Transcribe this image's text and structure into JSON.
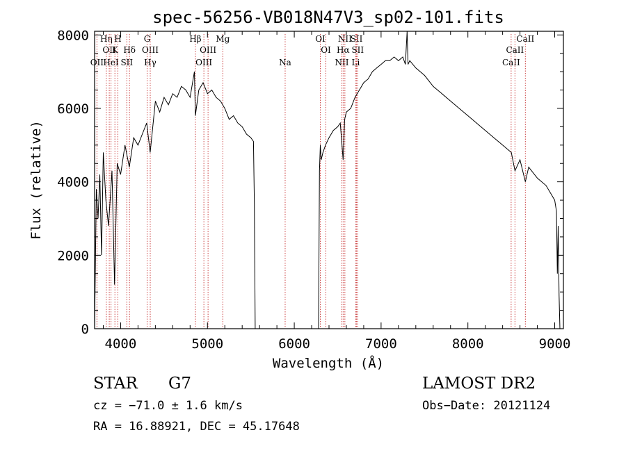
{
  "chart_data": {
    "type": "line",
    "title": "spec-56256-VB018N47V3_sp02-101.fits",
    "xlabel": "Wavelength (Å)",
    "ylabel": "Flux (relative)",
    "xlim": [
      3700,
      9100
    ],
    "ylim": [
      0,
      8100
    ],
    "x_ticks": [
      4000,
      5000,
      6000,
      7000,
      8000,
      9000
    ],
    "y_ticks": [
      0,
      2000,
      4000,
      6000,
      8000
    ],
    "grid": false,
    "series": [
      {
        "x": [
          3700,
          3720,
          3740,
          3760,
          3780,
          3800,
          3830,
          3860,
          3900,
          3930,
          3960,
          4000,
          4050,
          4100,
          4150,
          4200,
          4250,
          4300,
          4340,
          4400,
          4450,
          4500,
          4550,
          4600,
          4650,
          4700,
          4750,
          4800,
          4850,
          4861,
          4900,
          4950,
          5000,
          5050,
          5100,
          5150,
          5200,
          5250,
          5300,
          5350,
          5400,
          5450,
          5500,
          5530,
          5540,
          5550,
          5560
        ],
        "y": [
          0,
          3800,
          3000,
          4200,
          2000,
          4800,
          3500,
          2800,
          4300,
          1200,
          4500,
          4200,
          5000,
          4400,
          5200,
          5000,
          5300,
          5600,
          4800,
          6200,
          5900,
          6300,
          6100,
          6400,
          6300,
          6600,
          6500,
          6300,
          7000,
          5800,
          6500,
          6700,
          6400,
          6500,
          6300,
          6200,
          6000,
          5700,
          5800,
          5600,
          5500,
          5300,
          5200,
          5100,
          3400,
          0,
          0
        ]
      },
      {
        "x": [
          6280,
          6290,
          6300,
          6310,
          6330,
          6360,
          6400,
          6450,
          6500,
          6530,
          6563,
          6580,
          6600,
          6650,
          6700,
          6750,
          6800,
          6850,
          6900,
          6950,
          7000,
          7050,
          7100,
          7150,
          7200,
          7250,
          7280,
          7300,
          7310,
          7330,
          7400,
          7500,
          7600,
          7700,
          7800,
          7900,
          8000,
          8100,
          8200,
          8300,
          8400,
          8500,
          8542,
          8600,
          8662,
          8700,
          8800,
          8900,
          8950,
          9000,
          9020,
          9030,
          9040,
          9050,
          9060
        ],
        "y": [
          0,
          4300,
          5000,
          4600,
          4800,
          5000,
          5200,
          5400,
          5500,
          5600,
          4600,
          5700,
          5900,
          6000,
          6300,
          6500,
          6700,
          6800,
          7000,
          7100,
          7200,
          7300,
          7300,
          7400,
          7300,
          7400,
          7200,
          8100,
          7200,
          7300,
          7100,
          6900,
          6600,
          6400,
          6200,
          6000,
          5800,
          5600,
          5400,
          5200,
          5000,
          4800,
          4300,
          4600,
          4000,
          4400,
          4100,
          3900,
          3700,
          3500,
          3200,
          1500,
          2800,
          900,
          0
        ]
      }
    ],
    "lines": [
      {
        "label": "OII",
        "wave": 3727,
        "row": 3
      },
      {
        "label": "Hη",
        "wave": 3835,
        "row": 1
      },
      {
        "label": "OII",
        "wave": 3869,
        "row": 2
      },
      {
        "label": "HeI",
        "wave": 3889,
        "row": 3
      },
      {
        "label": "K",
        "wave": 3934,
        "row": 2
      },
      {
        "label": "H",
        "wave": 3968,
        "row": 1
      },
      {
        "label": "SII",
        "wave": 4071,
        "row": 3
      },
      {
        "label": "Hδ",
        "wave": 4102,
        "row": 2
      },
      {
        "label": "G",
        "wave": 4305,
        "row": 1
      },
      {
        "label": "OIII",
        "wave": 4341,
        "row": 2
      },
      {
        "label": "Hγ",
        "wave": 4341,
        "row": 3
      },
      {
        "label": "Hβ",
        "wave": 4861,
        "row": 1
      },
      {
        "label": "OIII",
        "wave": 4959,
        "row": 3
      },
      {
        "label": "OIII",
        "wave": 5007,
        "row": 2
      },
      {
        "label": "Mg",
        "wave": 5177,
        "row": 1
      },
      {
        "label": "Na",
        "wave": 5895,
        "row": 3
      },
      {
        "label": "OI",
        "wave": 6300,
        "row": 1
      },
      {
        "label": "OI",
        "wave": 6364,
        "row": 2
      },
      {
        "label": "NII",
        "wave": 6548,
        "row": 3
      },
      {
        "label": "NII",
        "wave": 6583,
        "row": 1
      },
      {
        "label": "Hα",
        "wave": 6563,
        "row": 2
      },
      {
        "label": "SII",
        "wave": 6717,
        "row": 1
      },
      {
        "label": "SII",
        "wave": 6731,
        "row": 2
      },
      {
        "label": "Li",
        "wave": 6708,
        "row": 3
      },
      {
        "label": "CaII",
        "wave": 8498,
        "row": 3
      },
      {
        "label": "CaII",
        "wave": 8542,
        "row": 2
      },
      {
        "label": "CaII",
        "wave": 8662,
        "row": 1
      }
    ],
    "line_color": "#cc4444"
  },
  "info": {
    "class": "STAR",
    "subclass": "G7",
    "survey": "LAMOST DR2",
    "cz": "cz = −71.0 ± 1.6 km/s",
    "obs_date": "Obs−Date: 20121124",
    "radec": "RA =  16.88921, DEC =  45.17648"
  }
}
